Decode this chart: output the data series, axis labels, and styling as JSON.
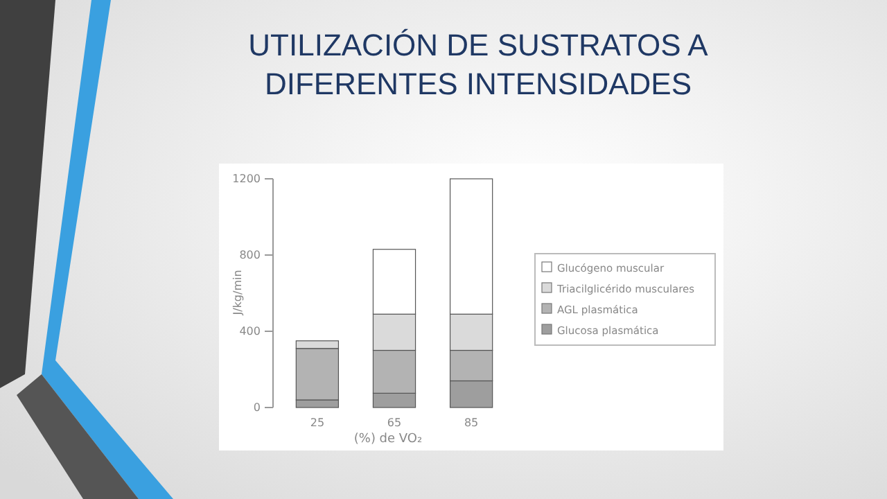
{
  "chart_data": {
    "type": "bar",
    "title": "UTILIZACIÓN DE SUSTRATOS A DIFERENTES INTENSIDADES",
    "xlabel": "(%) de VO₂",
    "ylabel": "J/kg/min",
    "categories": [
      "25",
      "65",
      "85"
    ],
    "stacked": true,
    "series": [
      {
        "name": "Glucosa plasmática",
        "color": "#9e9e9e",
        "values": [
          40,
          75,
          140
        ]
      },
      {
        "name": "AGL plasmática",
        "color": "#b3b3b3",
        "values": [
          270,
          225,
          160
        ]
      },
      {
        "name": "Triacilglicérido musculares",
        "color": "#dadada",
        "values": [
          40,
          190,
          190
        ]
      },
      {
        "name": "Glucógeno muscular",
        "color": "#ffffff",
        "values": [
          0,
          340,
          710
        ]
      }
    ],
    "ylim": [
      0,
      1200
    ],
    "yticks": [
      0,
      400,
      800,
      1200
    ],
    "legend": "right",
    "grid": false
  }
}
